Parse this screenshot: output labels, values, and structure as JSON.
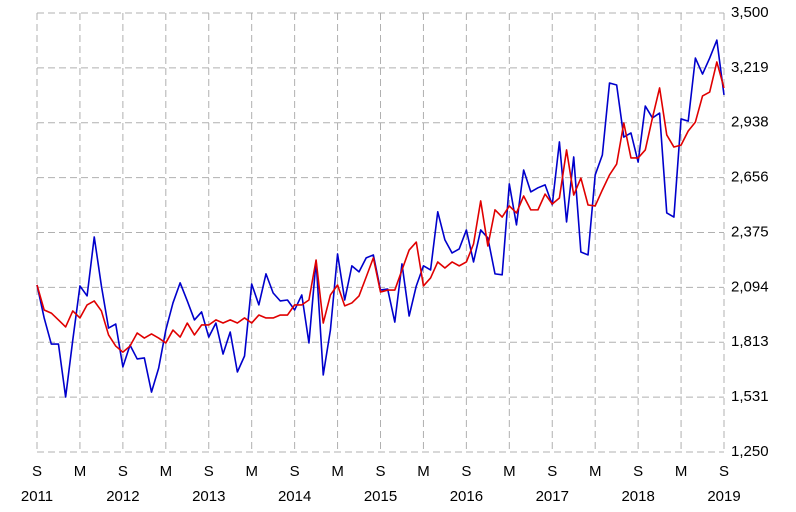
{
  "chart_data": {
    "type": "line",
    "categories": [
      "S",
      null,
      null,
      null,
      null,
      null,
      "M",
      null,
      null,
      null,
      null,
      null,
      "S",
      null,
      null,
      null,
      null,
      null,
      "M",
      null,
      null,
      null,
      null,
      null,
      "S",
      null,
      null,
      null,
      null,
      null,
      "M",
      null,
      null,
      null,
      null,
      null,
      "S",
      null,
      null,
      null,
      null,
      null,
      "M",
      null,
      null,
      null,
      null,
      null,
      "S",
      null,
      null,
      null,
      null,
      null,
      "M",
      null,
      null,
      null,
      null,
      null,
      "S",
      null,
      null,
      null,
      null,
      null,
      "M",
      null,
      null,
      null,
      null,
      null,
      "S",
      null,
      null,
      null,
      null,
      null,
      "M",
      null,
      null,
      null,
      null,
      null,
      "S",
      null,
      null,
      null,
      null,
      null,
      "M",
      null,
      null,
      null,
      null,
      null,
      "S"
    ],
    "year_labels": [
      "2011",
      "2012",
      "2013",
      "2014",
      "2015",
      "2016",
      "2017",
      "2018",
      "2019"
    ],
    "series": [
      {
        "color": "#0000cc",
        "values": [
          2106,
          1937,
          1803,
          1803,
          1532,
          1824,
          2101,
          2050,
          2352,
          2101,
          1885,
          1906,
          1686,
          1798,
          1727,
          1732,
          1557,
          1680,
          1875,
          2014,
          2117,
          2024,
          1927,
          1968,
          1839,
          1911,
          1752,
          1865,
          1660,
          1742,
          2111,
          2004,
          2163,
          2065,
          2024,
          2029,
          1978,
          2055,
          1809,
          2229,
          1645,
          1875,
          2265,
          2029,
          2204,
          2173,
          2245,
          2260,
          2080,
          2085,
          1916,
          2214,
          1947,
          2101,
          2204,
          2183,
          2481,
          2337,
          2270,
          2291,
          2388,
          2224,
          2388,
          2347,
          2163,
          2158,
          2624,
          2414,
          2695,
          2583,
          2604,
          2619,
          2517,
          2839,
          2429,
          2762,
          2275,
          2260,
          2670,
          2772,
          3141,
          3131,
          2864,
          2885,
          2736,
          3023,
          2962,
          2987,
          2475,
          2454,
          2957,
          2946,
          3269,
          3187,
          3269,
          3361,
          3080
        ]
      },
      {
        "color": "#e00000",
        "values": [
          2106,
          1978,
          1962,
          1927,
          1891,
          1973,
          1937,
          2004,
          2024,
          1973,
          1850,
          1793,
          1762,
          1793,
          1860,
          1834,
          1855,
          1834,
          1809,
          1875,
          1839,
          1911,
          1850,
          1901,
          1901,
          1927,
          1911,
          1927,
          1911,
          1937,
          1911,
          1952,
          1937,
          1937,
          1952,
          1952,
          2004,
          2004,
          2029,
          2234,
          1911,
          2055,
          2106,
          1999,
          2014,
          2050,
          2147,
          2245,
          2070,
          2080,
          2080,
          2183,
          2285,
          2326,
          2101,
          2142,
          2224,
          2193,
          2224,
          2204,
          2224,
          2316,
          2537,
          2306,
          2491,
          2454,
          2511,
          2475,
          2562,
          2491,
          2491,
          2572,
          2521,
          2552,
          2798,
          2567,
          2654,
          2516,
          2511,
          2593,
          2670,
          2726,
          2936,
          2757,
          2757,
          2798,
          2962,
          3116,
          2875,
          2813,
          2823,
          2895,
          2941,
          3075,
          3095,
          3249,
          3116
        ]
      }
    ],
    "ylim": [
      1250,
      3500
    ],
    "yticks": [
      {
        "value": 1250,
        "label": "1,250"
      },
      {
        "value": 1531.25,
        "label": "1,531"
      },
      {
        "value": 1812.5,
        "label": "1,813"
      },
      {
        "value": 2093.75,
        "label": "2,094"
      },
      {
        "value": 2375,
        "label": "2,375"
      },
      {
        "value": 2656.25,
        "label": "2,656"
      },
      {
        "value": 2937.5,
        "label": "2,938"
      },
      {
        "value": 3218.75,
        "label": "3,219"
      },
      {
        "value": 3500,
        "label": "3,500"
      }
    ],
    "grid": true,
    "y_axis_side": "right"
  }
}
